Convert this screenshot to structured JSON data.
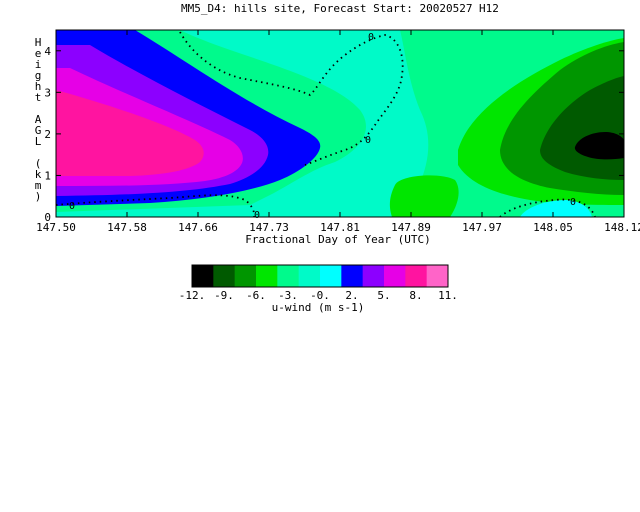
{
  "chart_data": {
    "type": "contour",
    "title": "MM5_D4: hills site,  Forecast Start: 20020527 H12",
    "xlabel": "Fractional Day of Year (UTC)",
    "ylabel": "Height AGL (km)",
    "xlim": [
      147.5,
      148.12
    ],
    "ylim": [
      0,
      4.5
    ],
    "x_ticks": [
      "147.50",
      "147.58",
      "147.66",
      "147.73",
      "147.81",
      "147.89",
      "147.97",
      "148.05",
      "148.12"
    ],
    "y_ticks": [
      "0",
      "1",
      "2",
      "3",
      "4"
    ],
    "contour_label": "0",
    "colorbar": {
      "label": "u-wind (m s-1)",
      "tick_labels": [
        "-12.",
        "-9.",
        "-6.",
        "-3.",
        "-0.",
        "2.",
        "5.",
        "8.",
        "11."
      ],
      "colors": [
        "#000000",
        "#005a00",
        "#009600",
        "#00e600",
        "#00fa8c",
        "#00fac8",
        "#00ffff",
        "#0000ff",
        "#8c00ff",
        "#e600e6",
        "#ff14a0",
        "#ff64c8"
      ]
    }
  }
}
